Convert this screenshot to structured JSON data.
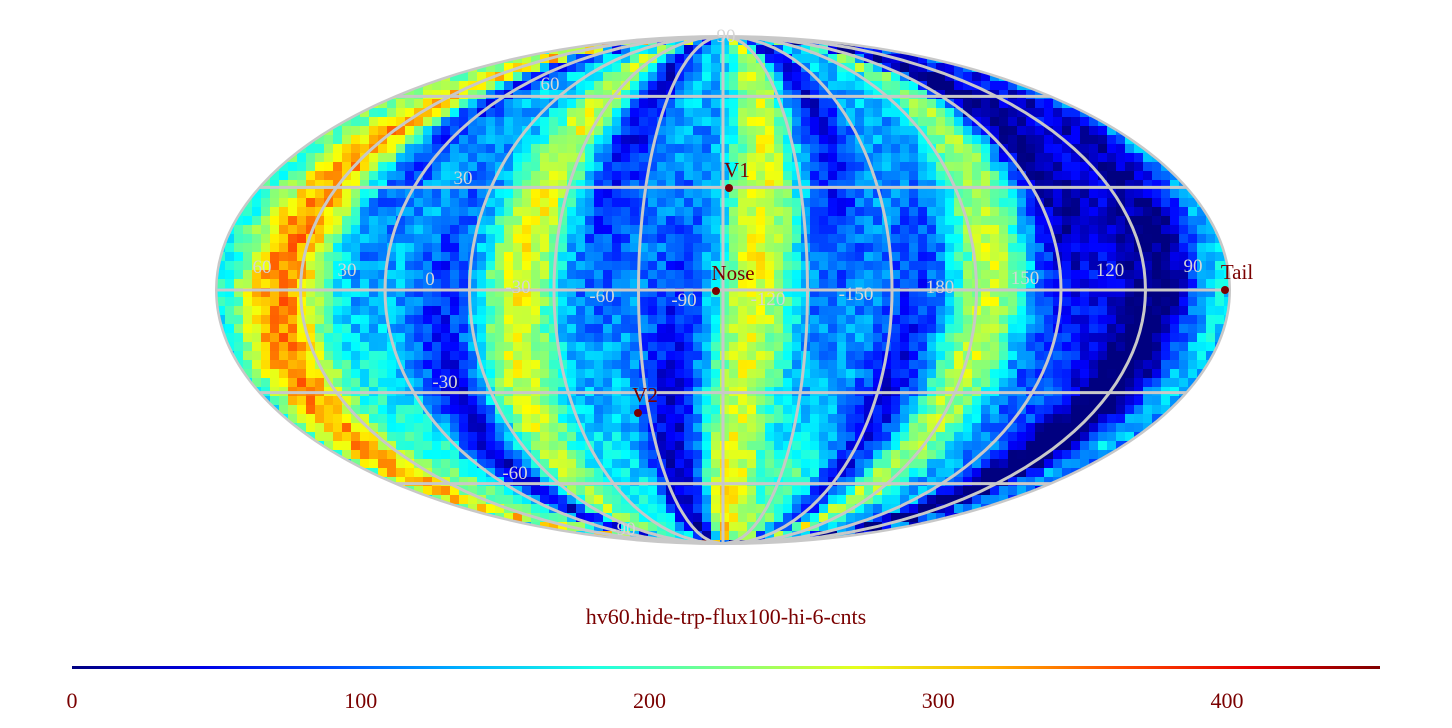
{
  "title": "hv60.hide-trp-flux100-hi-6-cnts",
  "projection": "mollweide",
  "colormap": "jet",
  "colorbar": {
    "min": 0,
    "max": 453,
    "ticks": [
      "0",
      "100",
      "200",
      "300",
      "400"
    ]
  },
  "grid": {
    "meridian_labels": [
      "60",
      "30",
      "0",
      "-30",
      "-60",
      "-90",
      "-120",
      "-150",
      "180",
      "150",
      "120",
      "90"
    ],
    "parallel_labels": [
      "90",
      "60",
      "30",
      "-30",
      "-60",
      "-90"
    ],
    "grid_color": "#c8c8c8"
  },
  "markers": [
    {
      "label": "Nose",
      "color": "#7a0000"
    },
    {
      "label": "V1",
      "color": "#7a0000"
    },
    {
      "label": "V2",
      "color": "#7a0000"
    },
    {
      "label": "Tail",
      "color": "#7a0000"
    }
  ]
}
